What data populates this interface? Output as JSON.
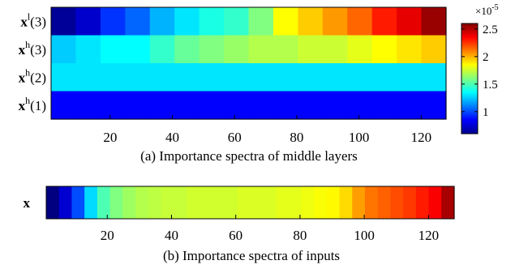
{
  "chart_data": [
    {
      "type": "heatmap",
      "caption": "(a)  Importance spectra of middle layers",
      "row_labels": [
        {
          "base": "x",
          "sup": "l",
          "arg": "(3)"
        },
        {
          "base": "x",
          "sup": "h",
          "arg": "(3)"
        },
        {
          "base": "x",
          "sup": "h",
          "arg": "(2)"
        },
        {
          "base": "x",
          "sup": "h",
          "arg": "(1)"
        }
      ],
      "x_range": [
        1,
        128
      ],
      "x_ticks": [
        20,
        40,
        60,
        80,
        100,
        120
      ],
      "colorbar": {
        "colormap": "jet",
        "range": [
          0.6,
          2.6
        ],
        "ticks": [
          "1",
          "1.5",
          "2",
          "2.5"
        ],
        "tick_values": [
          1,
          1.5,
          2,
          2.5
        ],
        "multiplier": "×10",
        "exponent": "-5"
      },
      "cells_per_row": 16,
      "values": [
        [
          0.65,
          0.75,
          0.95,
          1.05,
          1.2,
          1.3,
          1.4,
          1.45,
          1.6,
          1.85,
          1.95,
          2.05,
          2.15,
          2.3,
          2.4,
          2.55
        ],
        [
          1.25,
          1.3,
          1.35,
          1.35,
          1.45,
          1.55,
          1.6,
          1.65,
          1.7,
          1.7,
          1.75,
          1.75,
          1.8,
          1.85,
          1.9,
          1.95
        ],
        [
          1.3,
          1.3,
          1.3,
          1.3,
          1.3,
          1.3,
          1.3,
          1.3,
          1.3,
          1.3,
          1.3,
          1.3,
          1.3,
          1.3,
          1.3,
          1.3
        ],
        [
          0.85,
          0.85,
          0.85,
          0.85,
          0.85,
          0.85,
          0.85,
          0.85,
          0.85,
          0.85,
          0.85,
          0.85,
          0.85,
          0.85,
          0.85,
          0.85
        ]
      ]
    },
    {
      "type": "heatmap",
      "caption": "(b) Importance spectra of inputs",
      "row_labels": [
        {
          "base": "x",
          "sup": "",
          "arg": ""
        }
      ],
      "x_range": [
        1,
        128
      ],
      "x_ticks": [
        20,
        40,
        60,
        80,
        100,
        120
      ],
      "colormap": "jet",
      "values_normalized": [
        0.0,
        0.08,
        0.2,
        0.34,
        0.45,
        0.5,
        0.53,
        0.55,
        0.56,
        0.57,
        0.57,
        0.58,
        0.58,
        0.58,
        0.58,
        0.59,
        0.59,
        0.59,
        0.6,
        0.6,
        0.61,
        0.62,
        0.63,
        0.66,
        0.72,
        0.76,
        0.78,
        0.8,
        0.82,
        0.85,
        0.88,
        0.96
      ]
    }
  ]
}
